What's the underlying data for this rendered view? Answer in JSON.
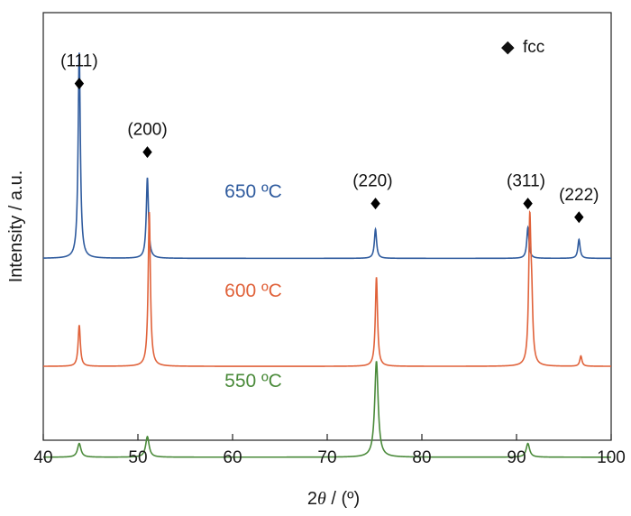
{
  "chart_data": {
    "type": "line",
    "xlabel_prefix": "2",
    "xlabel_theta": "θ",
    "xlabel_suffix": " / (º)",
    "ylabel": "Intensity / a.u.",
    "xlim": [
      40,
      100
    ],
    "xticks": [
      "40",
      "50",
      "60",
      "70",
      "80",
      "90",
      "100"
    ],
    "legend": {
      "marker": "◆",
      "label": "fcc",
      "position": "top-right"
    },
    "series": [
      {
        "name": "650 ºC",
        "color": "#2f5b9e",
        "offset": 0.72,
        "width": 0.14,
        "peaks": [
          {
            "x": 43.8,
            "h": 0.6
          },
          {
            "x": 51.0,
            "h": 0.235
          },
          {
            "x": 75.1,
            "h": 0.085
          },
          {
            "x": 91.2,
            "h": 0.09
          },
          {
            "x": 96.6,
            "h": 0.055
          }
        ]
      },
      {
        "name": "600 ºC",
        "color": "#e0623a",
        "offset": 0.405,
        "width": 0.14,
        "peaks": [
          {
            "x": 43.8,
            "h": 0.12
          },
          {
            "x": 51.2,
            "h": 0.45
          },
          {
            "x": 75.2,
            "h": 0.26
          },
          {
            "x": 91.4,
            "h": 0.4
          },
          {
            "x": 91.6,
            "h": 0.15
          },
          {
            "x": 96.8,
            "h": 0.03
          }
        ]
      },
      {
        "name": "550 ºC",
        "color": "#4a8a3a",
        "offset": 0.14,
        "width": 0.22,
        "peaks": [
          {
            "x": 43.8,
            "h": 0.04
          },
          {
            "x": 51.0,
            "h": 0.06
          },
          {
            "x": 75.2,
            "h": 0.28
          },
          {
            "x": 91.2,
            "h": 0.04
          }
        ]
      }
    ],
    "peak_labels": [
      {
        "text": "(111)",
        "x": 43.8,
        "marker_y": 1.23,
        "text_y": 1.28,
        "text_dx": 0
      },
      {
        "text": "(200)",
        "x": 51.0,
        "marker_y": 1.03,
        "text_y": 1.08,
        "text_dx": 0
      },
      {
        "text": "(220)",
        "x": 75.1,
        "marker_y": 0.88,
        "text_y": 0.93,
        "text_dx": -0.3
      },
      {
        "text": "(311)",
        "x": 91.2,
        "marker_y": 0.88,
        "text_y": 0.93,
        "text_dx": -0.2
      },
      {
        "text": "(222)",
        "x": 96.6,
        "marker_y": 0.84,
        "text_y": 0.89,
        "text_dx": 0
      }
    ]
  }
}
